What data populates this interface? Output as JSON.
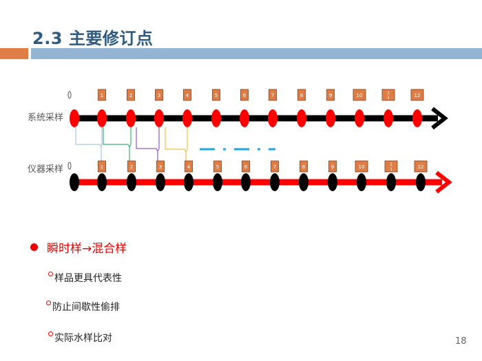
{
  "header": {
    "title": "2.3  主要修订点",
    "accent_orange": "#e07d45",
    "accent_blue": "#93b4d2"
  },
  "diagram": {
    "system_label": "系统采样",
    "instrument_label": "仪器采样",
    "zero_label": "0",
    "labels": [
      "1",
      "2",
      "3",
      "4",
      "5",
      "6",
      "7",
      "8",
      "9",
      "10",
      "11",
      "12"
    ],
    "system_line_color": "#000000",
    "system_dot_color": "#ff0000",
    "instrument_line_color": "#ff0000",
    "instrument_dot_color": "#000000",
    "label_box_color": "#e07d45",
    "connector_colors": [
      "#a8c6e0",
      "#3cb371",
      "#8a5cc0",
      "#f0c040"
    ],
    "dash_color": "#1ea6e6"
  },
  "bullets": {
    "main": "瞬时样→混合样",
    "main_color": "#ee0000",
    "sub": [
      "样品更具代表性",
      "防止间歇性偷排",
      "实际水样比对"
    ]
  },
  "page_number": "18"
}
